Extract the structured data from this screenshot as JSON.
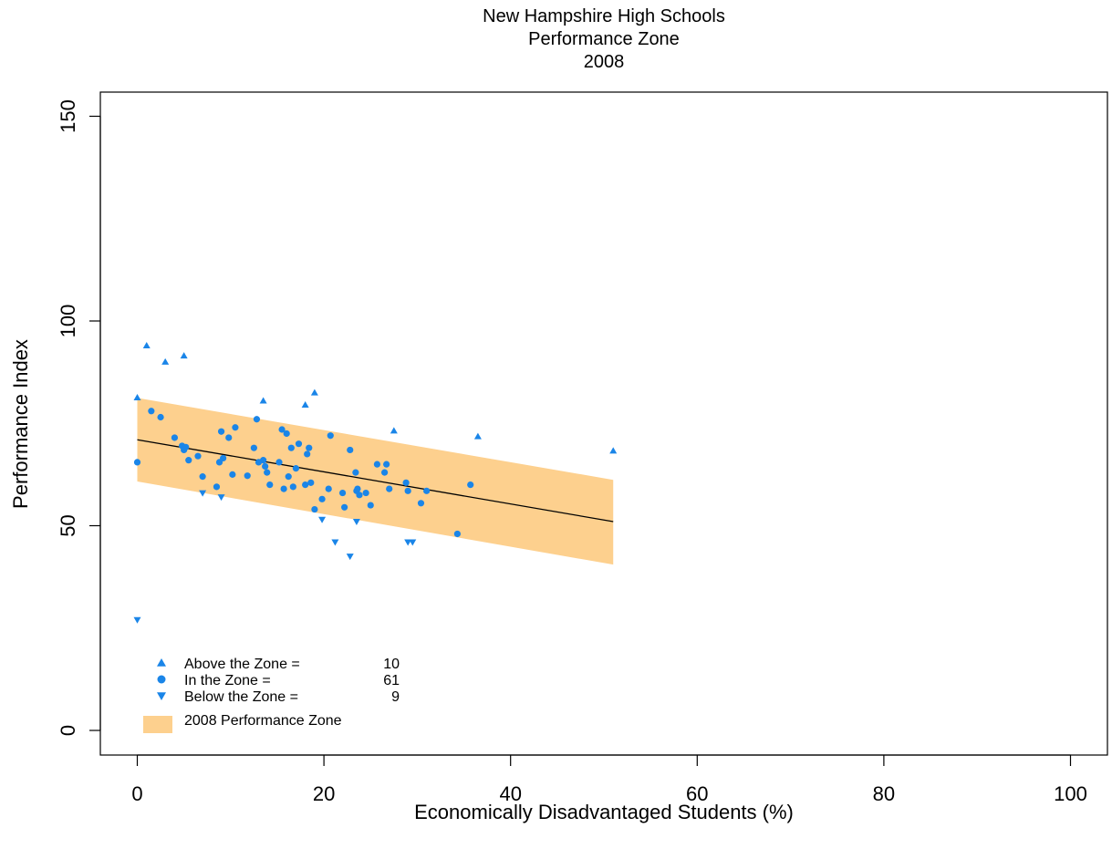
{
  "chart_data": {
    "type": "scatter",
    "title": [
      "New Hampshire High Schools",
      "Performance Zone",
      "2008"
    ],
    "xlabel": "Economically Disadvantaged Students (%)",
    "ylabel": "Performance Index",
    "xlim": [
      0,
      100
    ],
    "ylim": [
      0,
      150
    ],
    "xticks": [
      0,
      20,
      40,
      60,
      80,
      100
    ],
    "yticks": [
      0,
      50,
      100,
      150
    ],
    "grid": false,
    "legend_position": "bottom-left",
    "colors": {
      "points": "#1a85e8",
      "zone": "#fdd08e",
      "line": "#000000"
    },
    "zone": {
      "label": "2008 Performance Zone",
      "x": [
        0,
        51
      ],
      "center": [
        71,
        51
      ],
      "upper": [
        81.2,
        61.2
      ],
      "lower": [
        60.8,
        40.5
      ]
    },
    "legend": [
      {
        "label": "Above the Zone =",
        "count": "10",
        "marker": "triangle-up"
      },
      {
        "label": "In the Zone =",
        "count": "61",
        "marker": "circle"
      },
      {
        "label": "Below the Zone =",
        "count": "9",
        "marker": "triangle-down"
      },
      {
        "label": "2008 Performance Zone",
        "count": "",
        "marker": "rect"
      }
    ],
    "series": [
      {
        "name": "Above the Zone",
        "marker": "triangle-up",
        "points": [
          [
            0,
            81.3
          ],
          [
            1,
            94
          ],
          [
            3,
            90
          ],
          [
            5,
            91.5
          ],
          [
            13.5,
            80.5
          ],
          [
            18,
            79.5
          ],
          [
            19,
            82.5
          ],
          [
            27.5,
            73.2
          ],
          [
            36.5,
            71.8
          ],
          [
            51,
            68.3
          ]
        ]
      },
      {
        "name": "In the Zone",
        "marker": "circle",
        "points": [
          [
            0,
            65.5
          ],
          [
            1.5,
            78
          ],
          [
            2.5,
            76.5
          ],
          [
            4,
            71.5
          ],
          [
            4.8,
            69.5
          ],
          [
            5,
            68.5
          ],
          [
            5.2,
            69.2
          ],
          [
            5.5,
            66
          ],
          [
            6.5,
            67
          ],
          [
            7,
            62
          ],
          [
            8.5,
            59.5
          ],
          [
            8.8,
            65.5
          ],
          [
            9,
            73
          ],
          [
            9.2,
            66.5
          ],
          [
            9.8,
            71.5
          ],
          [
            10.2,
            62.5
          ],
          [
            10.5,
            74
          ],
          [
            11.8,
            62.2
          ],
          [
            12.5,
            69
          ],
          [
            12.8,
            76
          ],
          [
            13,
            65.5
          ],
          [
            13.5,
            66
          ],
          [
            13.7,
            64.5
          ],
          [
            13.9,
            63
          ],
          [
            14.2,
            60
          ],
          [
            15.2,
            65.5
          ],
          [
            15.5,
            73.5
          ],
          [
            15.7,
            59
          ],
          [
            16,
            72.5
          ],
          [
            16.2,
            62
          ],
          [
            16.5,
            69
          ],
          [
            16.7,
            59.5
          ],
          [
            17,
            64
          ],
          [
            17.3,
            70
          ],
          [
            18,
            60
          ],
          [
            18.2,
            67.5
          ],
          [
            18.4,
            69
          ],
          [
            18.6,
            60.5
          ],
          [
            19,
            54
          ],
          [
            19.8,
            56.5
          ],
          [
            20.5,
            59
          ],
          [
            20.7,
            72
          ],
          [
            22,
            58
          ],
          [
            22.2,
            54.5
          ],
          [
            22.8,
            68.5
          ],
          [
            23.4,
            63
          ],
          [
            23.5,
            58.5
          ],
          [
            23.6,
            59
          ],
          [
            23.8,
            57.5
          ],
          [
            24.5,
            58
          ],
          [
            25,
            55
          ],
          [
            25.7,
            65
          ],
          [
            26.5,
            63
          ],
          [
            26.7,
            65
          ],
          [
            27,
            59
          ],
          [
            28.8,
            60.5
          ],
          [
            29,
            58.5
          ],
          [
            30.4,
            55.5
          ],
          [
            31,
            58.5
          ],
          [
            34.3,
            48
          ],
          [
            35.7,
            60
          ]
        ]
      },
      {
        "name": "Below the Zone",
        "marker": "triangle-down",
        "points": [
          [
            0,
            27
          ],
          [
            7,
            58
          ],
          [
            9,
            57
          ],
          [
            19.8,
            51.5
          ],
          [
            21.2,
            46
          ],
          [
            22.8,
            42.5
          ],
          [
            23.5,
            51
          ],
          [
            29,
            46
          ],
          [
            29.5,
            46
          ]
        ]
      }
    ]
  }
}
